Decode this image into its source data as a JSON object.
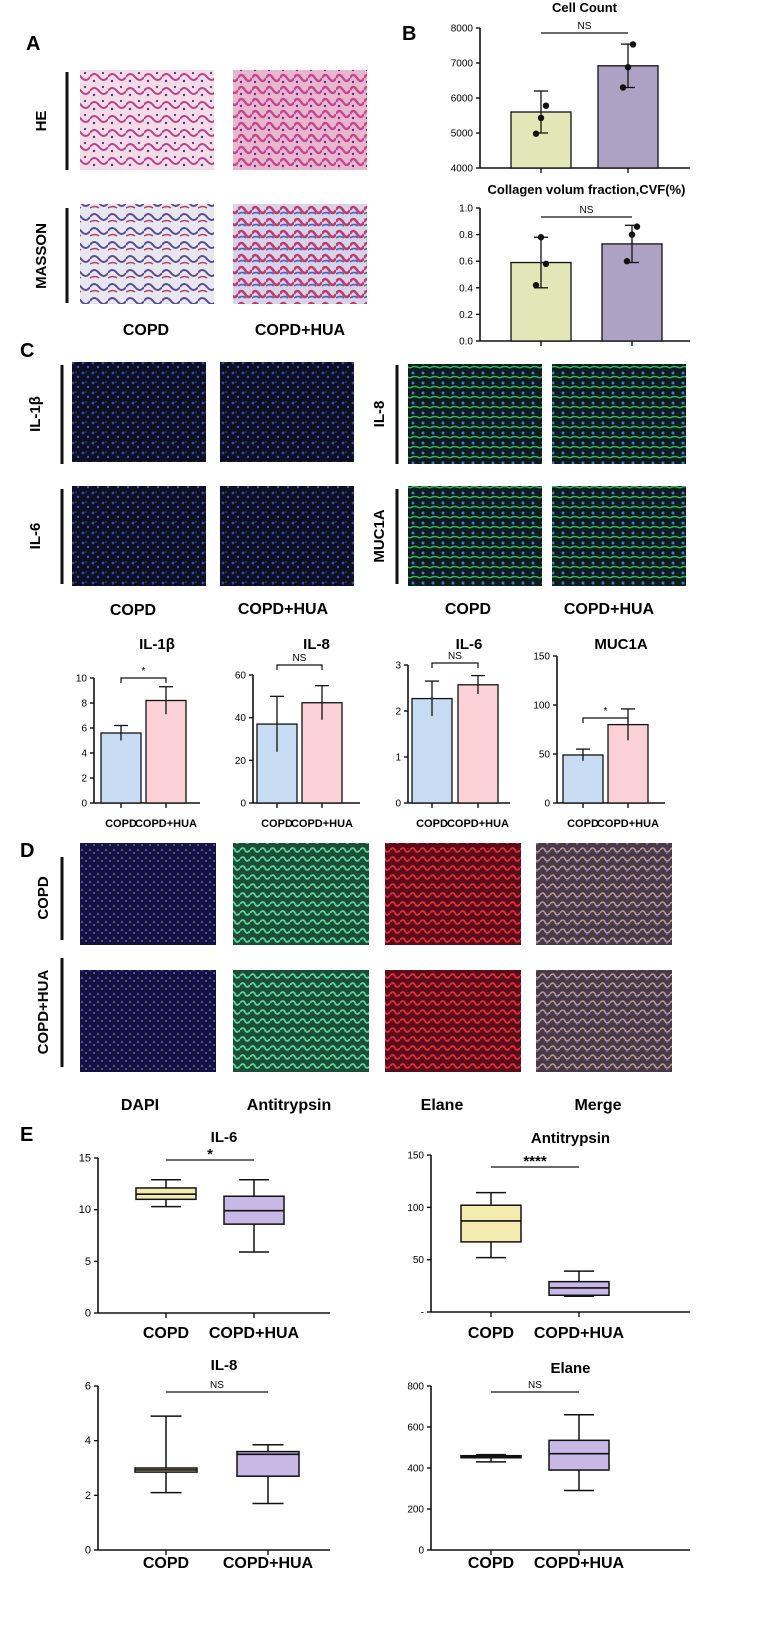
{
  "panels": {
    "A": "A",
    "B": "B",
    "C": "C",
    "D": "D",
    "E": "E"
  },
  "colors": {
    "copd_B": "#e2e7b8",
    "hua_B": "#aea2c4",
    "copd_C": "#c7dcf3",
    "hua_C": "#fbd0d6",
    "copd_E": "#f4ebb0",
    "hua_E": "#c7b8e6",
    "axis": "#111111"
  },
  "panel_A": {
    "row_labels": [
      "HE",
      "MASSON"
    ],
    "col_labels": [
      "COPD",
      "COPD+HUA"
    ],
    "images": {
      "he_copd": "he-stain-image",
      "he_hua": "he-stain-image",
      "masson_copd": "masson-stain-image",
      "masson_hua": "masson-stain-image"
    }
  },
  "panel_C_images": {
    "row_labels_left": [
      "IL-1β",
      "IL-6"
    ],
    "row_labels_right": [
      "IL-8",
      "MUC1A"
    ],
    "col_labels": [
      "COPD",
      "COPD+HUA",
      "COPD",
      "COPD+HUA"
    ]
  },
  "panel_D": {
    "row_labels": [
      "COPD",
      "COPD+HUA"
    ],
    "col_labels": [
      "DAPI",
      "Antitrypsin",
      "Elane",
      "Merge"
    ]
  },
  "chart_data": [
    {
      "id": "b1",
      "type": "bar",
      "title": "Cell Count",
      "categories": [
        "",
        ""
      ],
      "values": [
        5600,
        6920
      ],
      "errors": [
        600,
        620
      ],
      "points": [
        [
          4980,
          5430,
          5780
        ],
        [
          6300,
          6880,
          7530
        ]
      ],
      "ylim": [
        4000,
        8000
      ],
      "yticks": [
        4000,
        5000,
        6000,
        7000,
        8000
      ],
      "significance": "NS",
      "xlabel": "",
      "ylabel": ""
    },
    {
      "id": "b2",
      "type": "bar",
      "title": "Collagen volum fraction,CVF(%)",
      "categories": [
        "",
        ""
      ],
      "values": [
        0.59,
        0.73
      ],
      "errors": [
        0.19,
        0.14
      ],
      "points": [
        [
          0.42,
          0.78,
          0.58
        ],
        [
          0.6,
          0.8,
          0.86
        ]
      ],
      "ylim": [
        0.0,
        1.0
      ],
      "yticks": [
        "0.0",
        "0.2",
        "0.4",
        "0.6",
        "0.8",
        "1.0"
      ],
      "significance": "NS",
      "xlabel": "",
      "ylabel": ""
    },
    {
      "id": "c1",
      "type": "bar",
      "title": "IL-1β",
      "categories": [
        "COPD",
        "COPD+HUA"
      ],
      "values": [
        5.6,
        8.2
      ],
      "errors": [
        0.6,
        1.1
      ],
      "ylim": [
        0,
        10
      ],
      "yticks": [
        0,
        2,
        4,
        6,
        8,
        10
      ],
      "significance": "*"
    },
    {
      "id": "c2",
      "type": "bar",
      "title": "IL-8",
      "categories": [
        "COPD",
        "COPD+HUA"
      ],
      "values": [
        37,
        47
      ],
      "errors": [
        13,
        8
      ],
      "ylim": [
        0,
        60
      ],
      "yticks": [
        0,
        20,
        40,
        60
      ],
      "significance": "NS"
    },
    {
      "id": "c3",
      "type": "bar",
      "title": "IL-6",
      "categories": [
        "COPD",
        "COPD+HUA"
      ],
      "values": [
        2.27,
        2.57
      ],
      "errors": [
        0.38,
        0.2
      ],
      "ylim": [
        0,
        3
      ],
      "yticks": [
        0,
        1,
        2,
        3
      ],
      "significance": "NS"
    },
    {
      "id": "c4",
      "type": "bar",
      "title": "MUC1A",
      "categories": [
        "COPD",
        "COPD+HUA"
      ],
      "values": [
        49,
        80
      ],
      "errors": [
        6,
        16
      ],
      "ylim": [
        0,
        150
      ],
      "yticks": [
        0,
        50,
        100,
        150
      ],
      "significance": "*"
    },
    {
      "id": "e1",
      "type": "box",
      "title": "IL-6",
      "categories": [
        "COPD",
        "COPD+HUA"
      ],
      "boxes": [
        {
          "min": 10.3,
          "q1": 11.0,
          "median": 11.5,
          "q3": 12.1,
          "max": 12.9
        },
        {
          "min": 5.9,
          "q1": 8.6,
          "median": 9.9,
          "q3": 11.3,
          "max": 12.9
        }
      ],
      "ylim": [
        0,
        15
      ],
      "yticks": [
        0,
        5,
        10,
        15
      ],
      "significance": "*"
    },
    {
      "id": "e2",
      "type": "box",
      "title": "Antitrypsin",
      "categories": [
        "COPD",
        "COPD+HUA"
      ],
      "boxes": [
        {
          "min": 52,
          "q1": 67,
          "median": 87,
          "q3": 102,
          "max": 114
        },
        {
          "min": 15,
          "q1": 16,
          "median": 23,
          "q3": 29,
          "max": 39
        }
      ],
      "ylim": [
        0,
        150
      ],
      "yticks": [
        "-",
        50,
        100,
        150
      ],
      "significance": "****"
    },
    {
      "id": "e3",
      "type": "box",
      "title": "IL-8",
      "categories": [
        "COPD",
        "COPD+HUA"
      ],
      "boxes": [
        {
          "min": 2.1,
          "q1": 2.85,
          "median": 2.93,
          "q3": 3.0,
          "max": 4.9
        },
        {
          "min": 1.7,
          "q1": 2.7,
          "median": 3.5,
          "q3": 3.6,
          "max": 3.85
        }
      ],
      "ylim": [
        0,
        6
      ],
      "yticks": [
        0,
        2,
        4,
        6
      ],
      "significance": "NS"
    },
    {
      "id": "e4",
      "type": "box",
      "title": "Elane",
      "categories": [
        "COPD",
        "COPD+HUA"
      ],
      "boxes": [
        {
          "min": 430,
          "q1": 450,
          "median": 455,
          "q3": 460,
          "max": 465
        },
        {
          "min": 290,
          "q1": 390,
          "median": 470,
          "q3": 535,
          "max": 660
        }
      ],
      "ylim": [
        0,
        800
      ],
      "yticks": [
        0,
        200,
        400,
        600,
        800
      ],
      "significance": "NS"
    }
  ]
}
